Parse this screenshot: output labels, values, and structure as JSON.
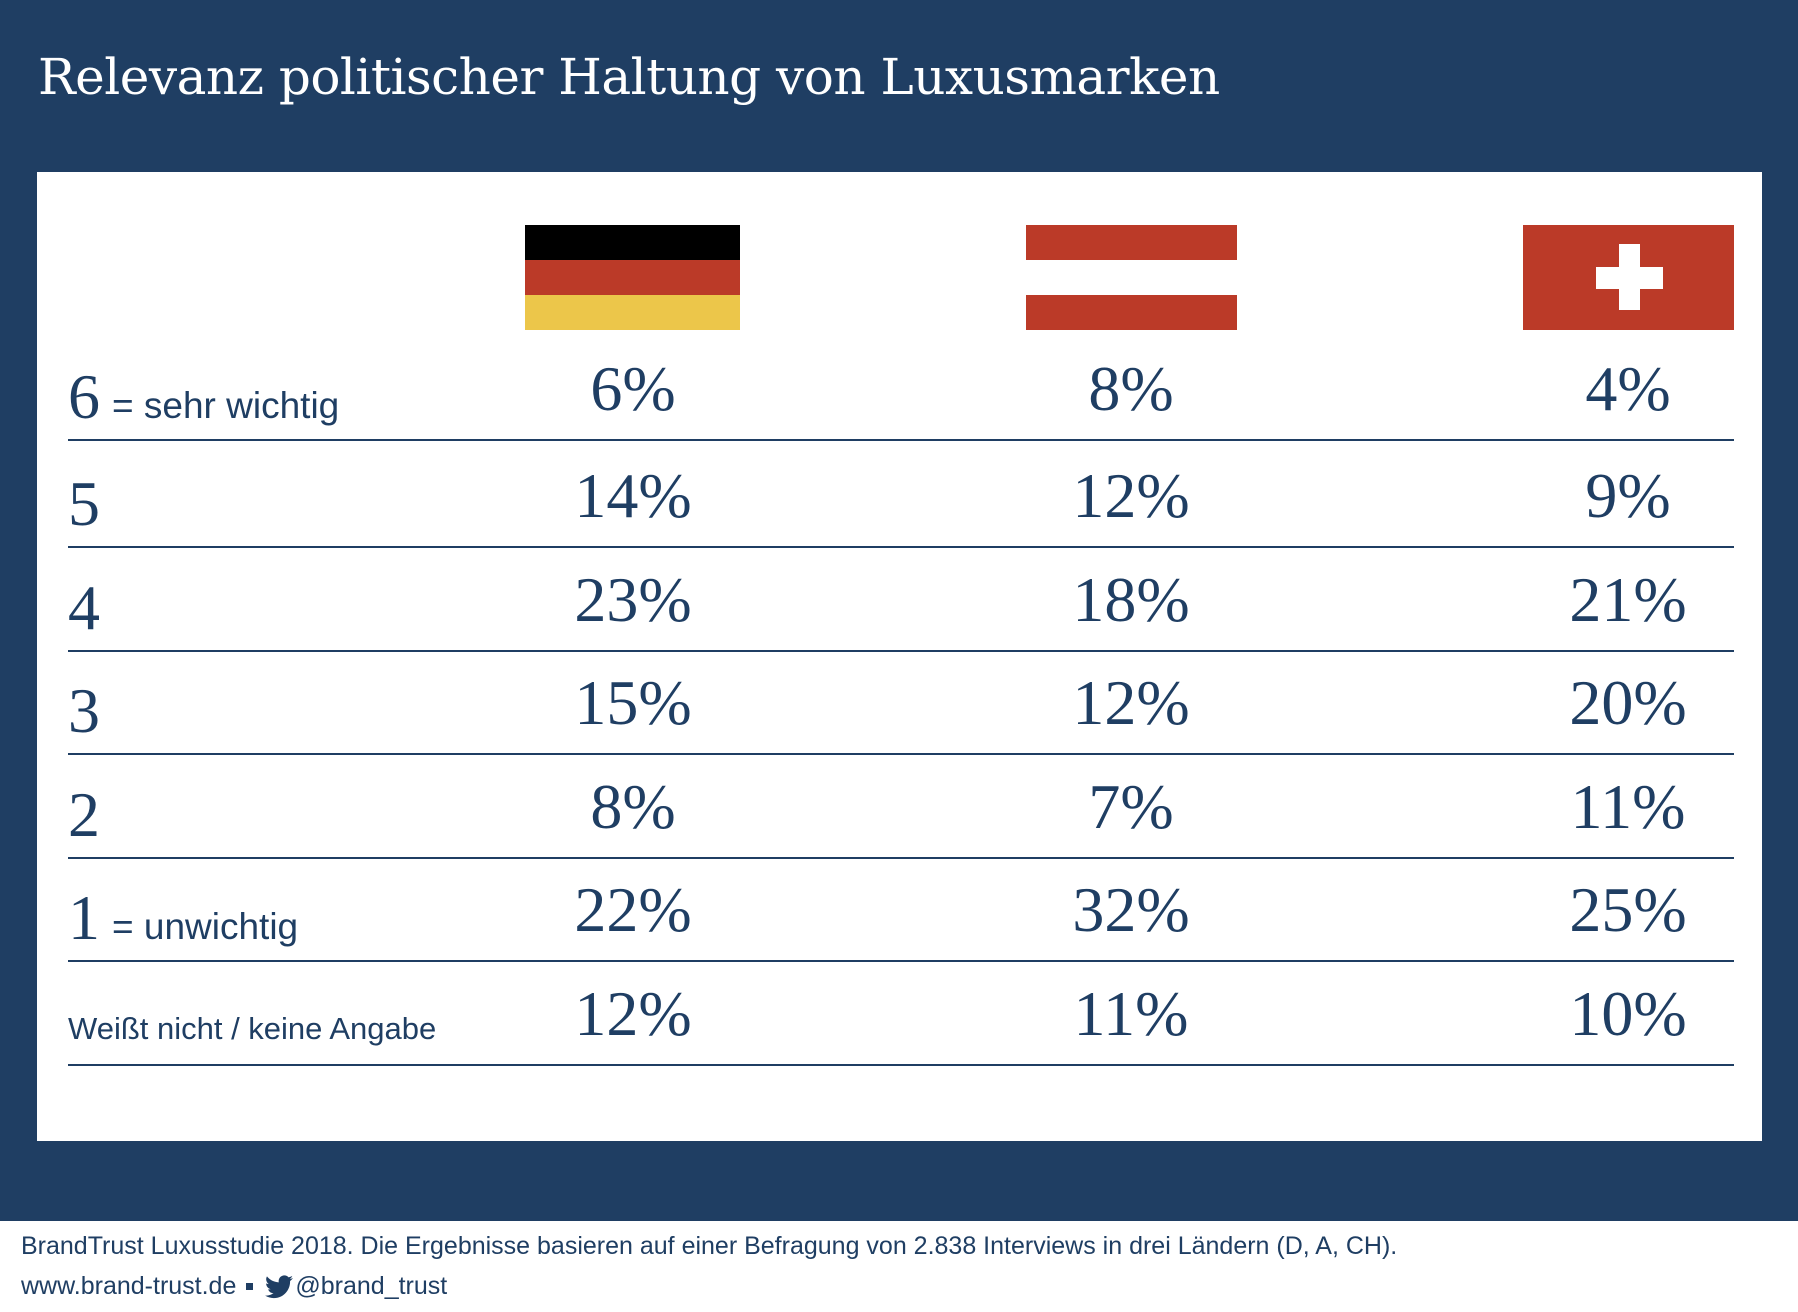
{
  "title": "Relevanz politischer Haltung von Luxusmarken",
  "colors": {
    "band": "#1f3e63",
    "text": "#1f3e63",
    "flag_red": "#bb3a28",
    "flag_black": "#000000",
    "flag_gold": "#ecc64a"
  },
  "columns": [
    {
      "country": "Deutschland",
      "flag_icon": "germany-flag-icon"
    },
    {
      "country": "Österreich",
      "flag_icon": "austria-flag-icon"
    },
    {
      "country": "Schweiz",
      "flag_icon": "switzerland-flag-icon"
    }
  ],
  "rows": [
    {
      "num": "6",
      "text": "= sehr wichtig",
      "values": [
        "6%",
        "8%",
        "4%"
      ]
    },
    {
      "num": "5",
      "text": "",
      "values": [
        "14%",
        "12%",
        "9%"
      ]
    },
    {
      "num": "4",
      "text": "",
      "values": [
        "23%",
        "18%",
        "21%"
      ]
    },
    {
      "num": "3",
      "text": "",
      "values": [
        "15%",
        "12%",
        "20%"
      ]
    },
    {
      "num": "2",
      "text": "",
      "values": [
        "8%",
        "7%",
        "11%"
      ]
    },
    {
      "num": "1",
      "text": "= unwichtig",
      "values": [
        "22%",
        "32%",
        "25%"
      ]
    },
    {
      "num": "",
      "text": "Weißt nicht / keine Angabe",
      "values": [
        "12%",
        "11%",
        "10%"
      ]
    }
  ],
  "chart_data": {
    "type": "table",
    "title": "Relevanz politischer Haltung von Luxusmarken",
    "columns": [
      "Deutschland",
      "Österreich",
      "Schweiz"
    ],
    "row_labels": [
      "6 = sehr wichtig",
      "5",
      "4",
      "3",
      "2",
      "1 = unwichtig",
      "Weißt nicht / keine Angabe"
    ],
    "series": [
      {
        "name": "Deutschland",
        "values": [
          6,
          14,
          23,
          15,
          8,
          22,
          12
        ]
      },
      {
        "name": "Österreich",
        "values": [
          8,
          12,
          18,
          12,
          7,
          32,
          11
        ]
      },
      {
        "name": "Schweiz",
        "values": [
          4,
          9,
          21,
          20,
          11,
          25,
          10
        ]
      }
    ],
    "unit": "%"
  },
  "footer": {
    "source": "BrandTrust Luxusstudie 2018. Die Ergebnisse basieren auf einer Befragung von 2.838 Interviews in drei Ländern (D, A, CH).",
    "website": "www.brand-trust.de",
    "twitter": "@brand_trust"
  }
}
